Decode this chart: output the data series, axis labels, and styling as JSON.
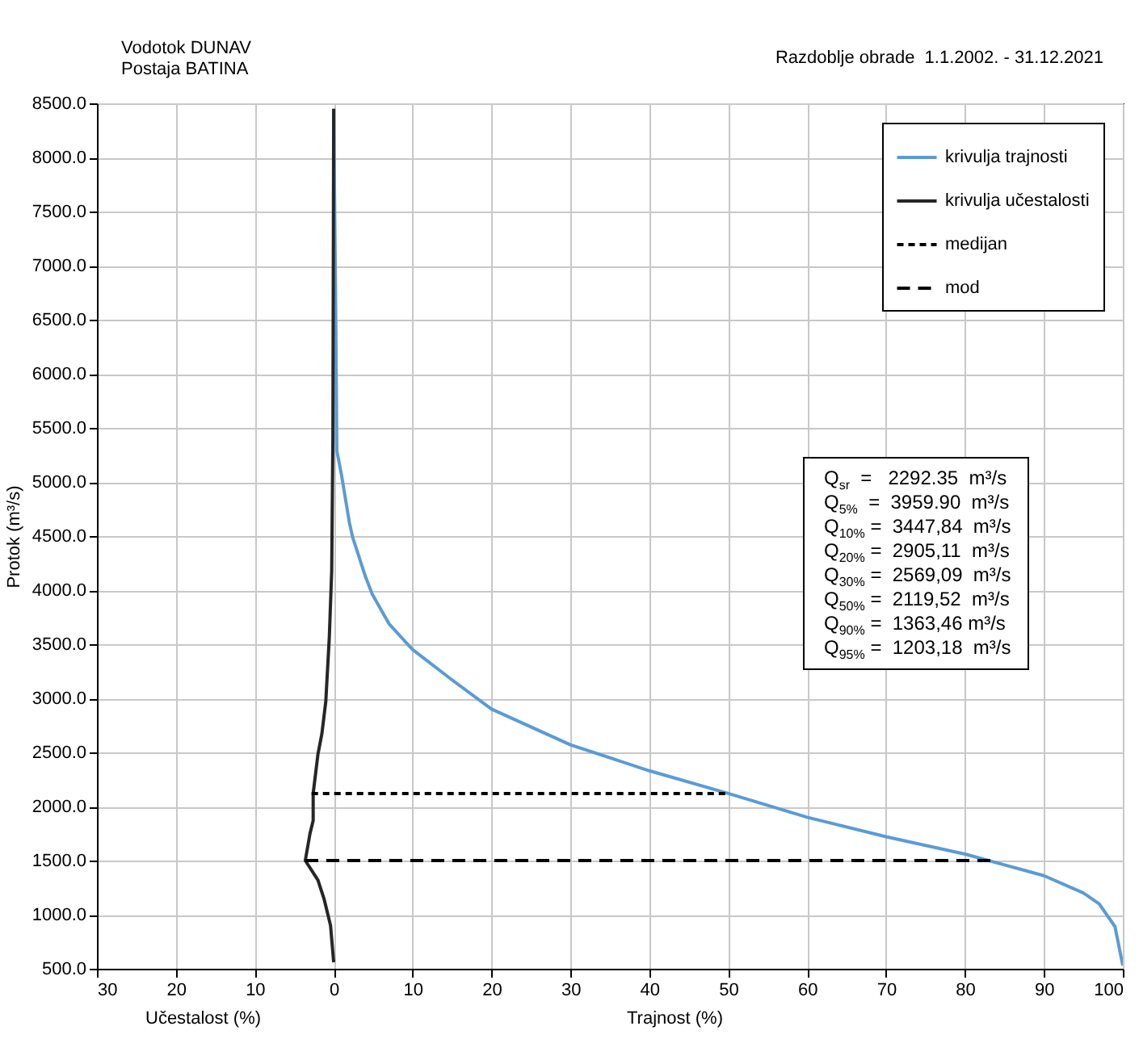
{
  "chart_data": {
    "type": "line",
    "title": "Vodotok DUNAV\nPostaja BATINA",
    "subtitle": "Razdoblje obrade  1.1.2002. - 31.12.2021",
    "xlabel": "Trajnost (%)",
    "ylabel": "Protok (m³/s)",
    "annotations": [
      "Učestalost (%)",
      "Q$_{sr}$  =   2292.35  m³/s",
      "Q$_{5%}$  =  3959.90  m³/s",
      "Q$_{10%}$ =  3447,84  m³/s",
      "Q$_{20%}$ =  2905,11  m³/s",
      "Q$_{30%}$ =  2569,09  m³/s",
      "Q$_{50%}$ =  2119,52  m³/s",
      "Q$_{90%}$ =  1363,46 m³/s",
      "Q$_{95%}$ =  1203,18  m³/s"
    ],
    "series": [
      {
        "name": "krivulja trajnosti",
        "color": "#5b9bd5",
        "line_style": "solid",
        "x": [
          0,
          0.25,
          0.4,
          1,
          2,
          2.4,
          4,
          4.9,
          7,
          10,
          15,
          20,
          30,
          40,
          50,
          60,
          70,
          80,
          85,
          90,
          95,
          97,
          99,
          100
        ],
        "values": [
          8450,
          6640,
          5290,
          5060,
          4620,
          4490,
          4130,
          3960,
          3690,
          3450,
          3170,
          2900,
          2570,
          2330,
          2120,
          1900,
          1720,
          1560,
          1460,
          1360,
          1200,
          1100,
          890,
          530
        ]
      },
      {
        "name": "krivulja učestalosti",
        "color": "#262626",
        "line_style": "solid",
        "x": [
          0,
          -0.1,
          -0.25,
          -0.55,
          -1,
          -1.5,
          -2,
          -2.6,
          -2.6,
          -3,
          -3.6,
          -2,
          -1.2,
          -0.4,
          0
        ],
        "values": [
          8450,
          5410,
          4180,
          3570,
          2970,
          2670,
          2480,
          2120,
          1870,
          1750,
          1500,
          1320,
          1140,
          900,
          560
        ]
      },
      {
        "name": "medijan",
        "color": "#000000",
        "line_style": "dotted",
        "x": [
          -2.8,
          50
        ],
        "values": [
          2120,
          2120
        ]
      },
      {
        "name": "mod",
        "color": "#000000",
        "line_style": "dashed",
        "x": [
          -3.6,
          83.4
        ],
        "values": [
          1500,
          1500
        ]
      }
    ],
    "xlim": [
      -30,
      100
    ],
    "xticks": [
      {
        "value": -30,
        "label": "30"
      },
      {
        "value": -20,
        "label": "20"
      },
      {
        "value": -10,
        "label": "10"
      },
      0,
      10,
      20,
      30,
      40,
      50,
      60,
      70,
      80,
      90,
      100
    ],
    "ylim": [
      500,
      8500
    ],
    "yticks": [
      {
        "value": 500,
        "label": "500.0"
      },
      {
        "value": 1000,
        "label": "1000.0"
      },
      {
        "value": 1500,
        "label": "1500.0"
      },
      {
        "value": 2000,
        "label": "2000.0"
      },
      {
        "value": 2500,
        "label": "2500.0"
      },
      {
        "value": 3000,
        "label": "3000.0"
      },
      {
        "value": 3500,
        "label": "3500.0"
      },
      {
        "value": 4000,
        "label": "4000.0"
      },
      {
        "value": 4500,
        "label": "4500.0"
      },
      {
        "value": 5000,
        "label": "5000.0"
      },
      {
        "value": 5500,
        "label": "5500.0"
      },
      {
        "value": 6000,
        "label": "6000.0"
      },
      {
        "value": 6500,
        "label": "6500.0"
      },
      {
        "value": 7000,
        "label": "7000.0"
      },
      {
        "value": 7500,
        "label": "7500.0"
      },
      {
        "value": 8000,
        "label": "8000.0"
      },
      {
        "value": 8500,
        "label": "8500.0"
      }
    ],
    "grid": true,
    "legend": "top right"
  }
}
